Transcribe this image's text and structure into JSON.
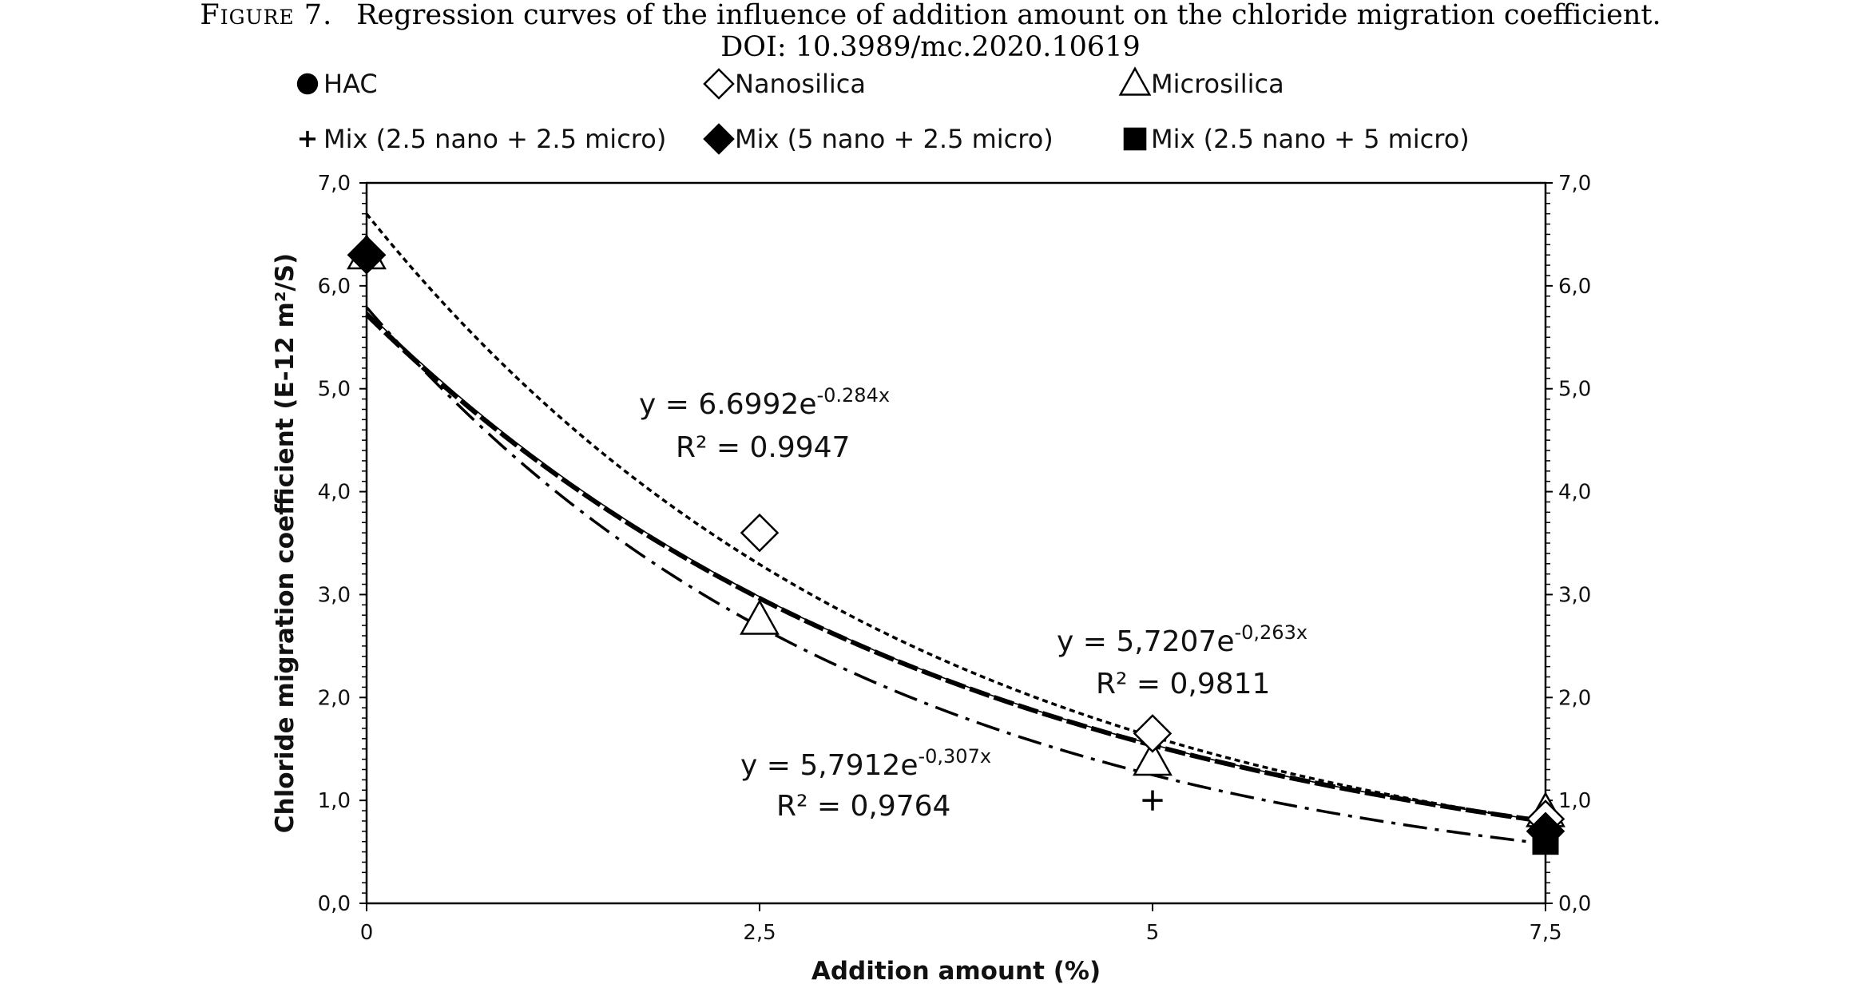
{
  "figure": {
    "caption_label": "Figure 7.",
    "caption_text": "Regression curves of the influence of addition amount on the chloride migration coefficient.",
    "doi": "DOI: 10.3989/mc.2020.10619"
  },
  "chart_data": {
    "type": "scatter",
    "xlabel": "Addition amount (%)",
    "ylabel": "Chloride migration coefficient (E-12 m²/S)",
    "xlim": [
      0,
      7.5
    ],
    "ylim": [
      0,
      7
    ],
    "x_ticks": [
      0,
      2.5,
      5,
      7.5
    ],
    "x_tick_labels": [
      "0",
      "2,5",
      "5",
      "7,5"
    ],
    "y_ticks": [
      0,
      1,
      2,
      3,
      4,
      5,
      6,
      7
    ],
    "y_tick_labels": [
      "0,0",
      "1,0",
      "2,0",
      "3,0",
      "4,0",
      "5,0",
      "6,0",
      "7,0"
    ],
    "secondary_y_axis": true,
    "grid": false,
    "legend_position": "top",
    "series": [
      {
        "name": "HAC",
        "marker": "filled-circle",
        "color": "#000000",
        "x": [
          0
        ],
        "y": [
          6.3
        ]
      },
      {
        "name": "Nanosilica",
        "marker": "open-diamond",
        "color": "#000000",
        "x": [
          0,
          2.5,
          5,
          7.5
        ],
        "y": [
          6.3,
          3.6,
          1.65,
          0.82
        ]
      },
      {
        "name": "Microsilica",
        "marker": "open-triangle",
        "color": "#000000",
        "x": [
          0,
          2.5,
          5,
          7.5
        ],
        "y": [
          6.3,
          2.75,
          1.38,
          0.88
        ]
      },
      {
        "name": "Mix  (2.5 nano + 2.5 micro)",
        "marker": "plus",
        "color": "#000000",
        "x": [
          5
        ],
        "y": [
          1.0
        ]
      },
      {
        "name": "Mix (5 nano + 2.5 micro)",
        "marker": "filled-diamond",
        "color": "#000000",
        "x": [
          0,
          7.5
        ],
        "y": [
          6.3,
          0.7
        ]
      },
      {
        "name": "Mix (2.5 nano + 5 micro)",
        "marker": "filled-square",
        "color": "#000000",
        "x": [
          7.5
        ],
        "y": [
          0.6
        ]
      }
    ],
    "trendlines": [
      {
        "a": 6.6992,
        "b": -0.284,
        "style": "dotted",
        "eq_label": "y = 6.6992e",
        "eq_exp": "-0.284x",
        "r2_label": "R² = 0.9947"
      },
      {
        "a": 5.7207,
        "b": -0.263,
        "style": "thick-dashed",
        "eq_label": "y = 5,7207e",
        "eq_exp": "-0,263x",
        "r2_label": "R² = 0,9811"
      },
      {
        "a": 5.7912,
        "b": -0.307,
        "style": "dash-dot",
        "eq_label": "y = 5,7912e",
        "eq_exp": "-0,307x",
        "r2_label": "R² = 0,9764"
      },
      {
        "a": 5.75,
        "b": -0.263,
        "style": "thin-solid"
      }
    ]
  }
}
